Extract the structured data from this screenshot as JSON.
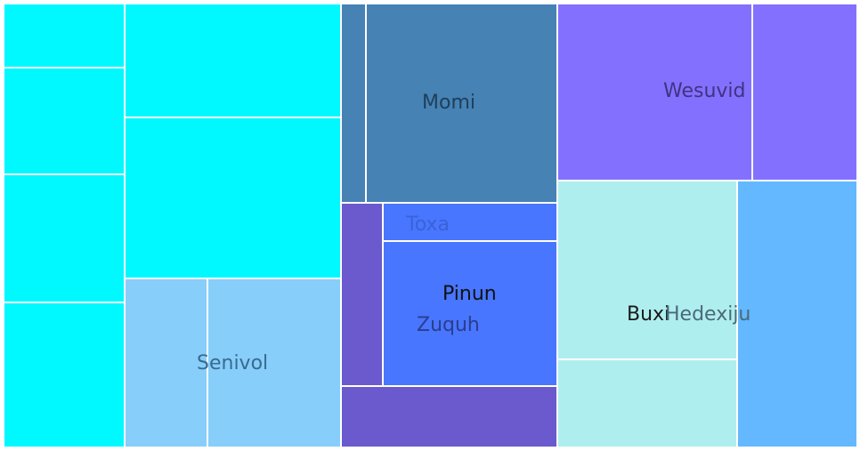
{
  "chart_data": {
    "type": "treemap",
    "labels": [
      "Momi",
      "Wesuvid",
      "Toxa",
      "Pinun",
      "Zuquh",
      "Buxi",
      "Hedexiju",
      "Senivol"
    ],
    "groups": [
      {
        "color": "#00f8ff",
        "label": "",
        "leaves": [
          {
            "value": 0.041,
            "color": "#00f8ff"
          },
          {
            "value": 0.067,
            "color": "#00f8ff"
          },
          {
            "value": 0.081,
            "color": "#00f8ff"
          },
          {
            "value": 0.091,
            "color": "#00f8ff"
          },
          {
            "value": 0.063,
            "color": "#00f8ff"
          },
          {
            "value": 0.09,
            "color": "#00f8ff"
          }
        ]
      },
      {
        "color": "#87cefa",
        "label": "Senivol",
        "leaves": [
          {
            "value": 0.035,
            "color": "#87cefa"
          },
          {
            "value": 0.058,
            "color": "#87cefa"
          }
        ]
      },
      {
        "color": "#4682b4",
        "label": "Momi",
        "leaves": [
          {
            "value": 0.013,
            "color": "#4682b4"
          },
          {
            "value": 0.104,
            "color": "#4682b4"
          }
        ]
      },
      {
        "color": "#4876ff",
        "label": "Toxa",
        "leaves": [
          {
            "value": 0.019,
            "color": "#4876ff"
          }
        ]
      },
      {
        "color": "#4876ff",
        "label": "Pinun",
        "leaves": [
          {
            "value": 0.075,
            "color": "#4876ff"
          }
        ]
      },
      {
        "color": "#6a5acd",
        "label": "Zuquh",
        "leaves": [
          {
            "value": 0.02,
            "color": "#6a5acd"
          },
          {
            "value": 0.03,
            "color": "#6a5acd"
          }
        ]
      },
      {
        "color": "#8470ff",
        "label": "Wesuvid",
        "leaves": [
          {
            "value": 0.091,
            "color": "#8470ff"
          },
          {
            "value": 0.05,
            "color": "#8470ff"
          }
        ]
      },
      {
        "color": "#afeeee",
        "label": "Buxi",
        "leaves": [
          {
            "value": 0.083,
            "color": "#afeeee"
          },
          {
            "value": 0.041,
            "color": "#afeeee"
          }
        ]
      },
      {
        "color": "#63b8ff",
        "label": "Hedexiju",
        "leaves": [
          {
            "value": 0.058,
            "color": "#63b8ff"
          }
        ]
      }
    ]
  },
  "labels": {
    "momi": "Momi",
    "wesuvid": "Wesuvid",
    "toxa": "Toxa",
    "pinun": "Pinun",
    "zuquh": "Zuquh",
    "buxi": "Buxi",
    "hedexiju": "Hedexiju",
    "senivol": "Senivol"
  }
}
